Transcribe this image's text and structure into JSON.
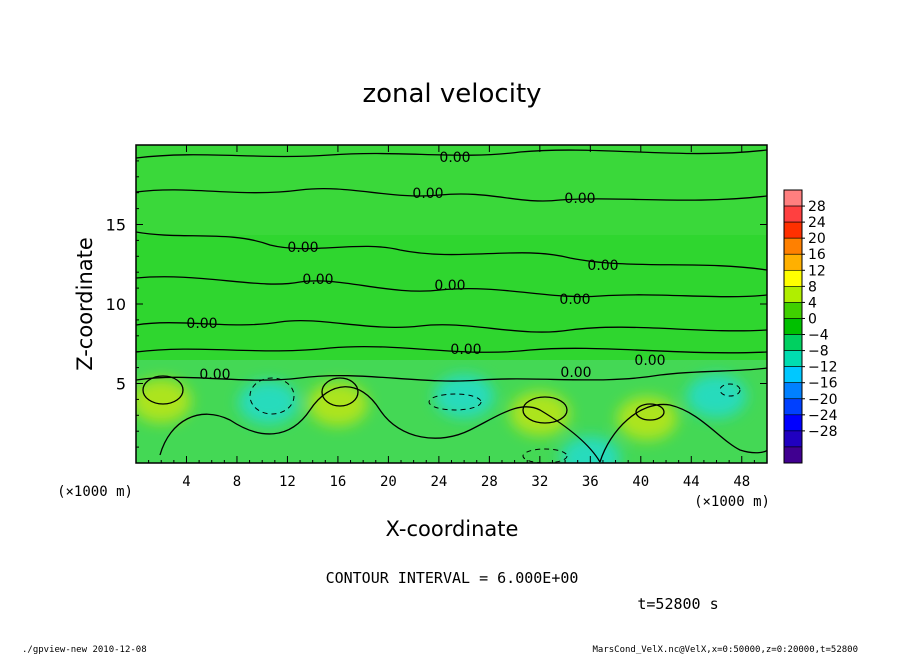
{
  "chart_data": {
    "type": "heatmap",
    "title": "zonal velocity",
    "xlabel": "X-coordinate",
    "ylabel": "Z-coordinate",
    "x_unit": "(×1000 m)",
    "y_unit": "(×1000 m)",
    "xlim": [
      0,
      50
    ],
    "ylim": [
      0,
      20
    ],
    "x_ticks": [
      "4",
      "8",
      "12",
      "16",
      "20",
      "24",
      "28",
      "32",
      "36",
      "40",
      "44",
      "48"
    ],
    "y_ticks": [
      "5",
      "10",
      "15"
    ],
    "colorbar": {
      "levels": [
        "28",
        "24",
        "20",
        "16",
        "12",
        "8",
        "4",
        "0",
        "−4",
        "−8",
        "−12",
        "−16",
        "−20",
        "−24",
        "−28"
      ],
      "colors": [
        "#ff7f7f",
        "#ff4040",
        "#ff3000",
        "#ff8000",
        "#ffb000",
        "#ffff00",
        "#b0ee00",
        "#40d000",
        "#00c000",
        "#00d060",
        "#00ddb0",
        "#00c8ff",
        "#0080ff",
        "#0040ff",
        "#0000ff",
        "#2000c0",
        "#400090"
      ]
    },
    "contour_labels": [
      "0.00",
      "0.00",
      "0.00",
      "0.00",
      "0.00",
      "0.00",
      "0.00",
      "0.00",
      "0.00",
      "0.00",
      "0.00",
      "0.00",
      "0.00"
    ],
    "contour_interval_text": "CONTOUR INTERVAL = 6.000E+00",
    "time_text": "t=52800 s",
    "features": [
      {
        "x": 2,
        "z": 3.9,
        "value": 6,
        "sign": "positive"
      },
      {
        "x": 10.5,
        "z": 3.8,
        "value": -6,
        "sign": "negative"
      },
      {
        "x": 16,
        "z": 3.7,
        "value": 6,
        "sign": "positive"
      },
      {
        "x": 32,
        "z": 3.1,
        "value": 6,
        "sign": "positive"
      },
      {
        "x": 40.5,
        "z": 2.8,
        "value": 6,
        "sign": "positive"
      },
      {
        "x": 26,
        "z": 4.2,
        "value": -6,
        "sign": "negative"
      },
      {
        "x": 36,
        "z": 0.3,
        "value": -6,
        "sign": "negative"
      },
      {
        "x": 46,
        "z": 4.2,
        "value": -6,
        "sign": "negative"
      }
    ]
  },
  "footer": {
    "left": "./gpview-new   2010-12-08",
    "right": "MarsCond_VelX.nc@VelX,x=0:50000,z=0:20000,t=52800"
  }
}
